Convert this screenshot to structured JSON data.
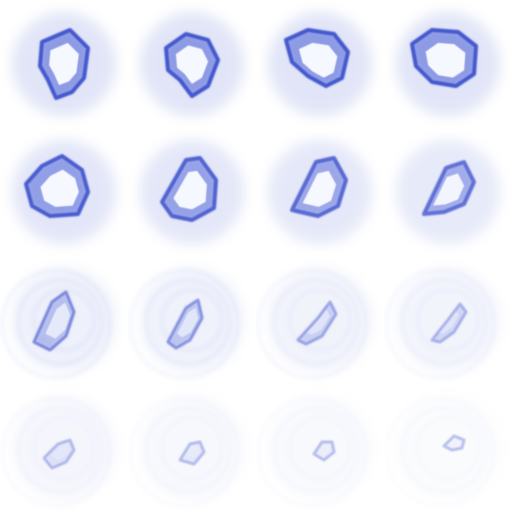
{
  "sprite_sheet": {
    "rows": 4,
    "columns": 4,
    "colors": {
      "background": "#ffffff",
      "glow": "#c9d0f2",
      "edge": "#4a5fd8",
      "edge_dark": "#3346c8",
      "core": "#f6f8ff"
    },
    "frames": [
      {
        "frame": 1,
        "blob": 1.0,
        "halo": 1.0
      },
      {
        "frame": 2,
        "blob": 1.0,
        "halo": 1.0
      },
      {
        "frame": 3,
        "blob": 1.0,
        "halo": 1.0
      },
      {
        "frame": 4,
        "blob": 1.0,
        "halo": 1.0
      },
      {
        "frame": 5,
        "blob": 0.95,
        "halo": 0.95
      },
      {
        "frame": 6,
        "blob": 0.9,
        "halo": 0.9
      },
      {
        "frame": 7,
        "blob": 0.85,
        "halo": 0.85
      },
      {
        "frame": 8,
        "blob": 0.8,
        "halo": 0.8
      },
      {
        "frame": 9,
        "blob": 0.62,
        "halo": 0.55
      },
      {
        "frame": 10,
        "blob": 0.55,
        "halo": 0.5
      },
      {
        "frame": 11,
        "blob": 0.45,
        "halo": 0.45
      },
      {
        "frame": 12,
        "blob": 0.38,
        "halo": 0.4
      },
      {
        "frame": 13,
        "blob": 0.25,
        "halo": 0.3
      },
      {
        "frame": 14,
        "blob": 0.2,
        "halo": 0.25
      },
      {
        "frame": 15,
        "blob": 0.15,
        "halo": 0.2
      },
      {
        "frame": 16,
        "blob": 0.1,
        "halo": 0.15
      }
    ]
  }
}
